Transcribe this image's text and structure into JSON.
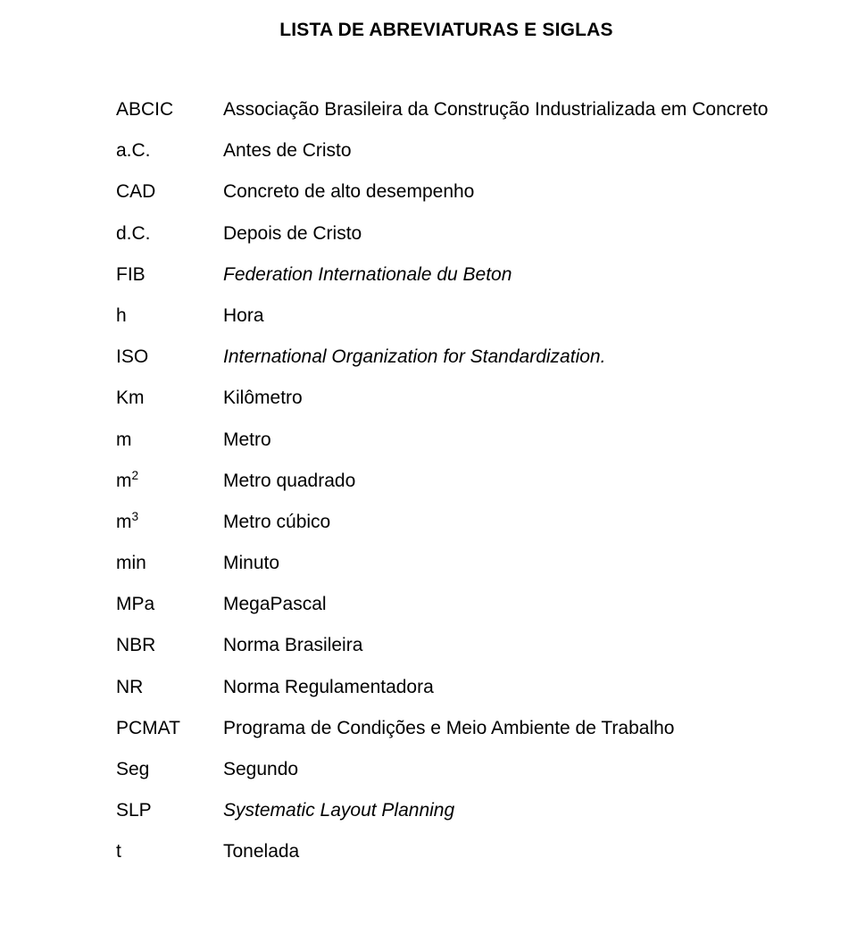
{
  "title": "LISTA DE ABREVIATURAS E SIGLAS",
  "entries": [
    {
      "abbr": "ABCIC",
      "desc": "Associação Brasileira da Construção Industrializada em Concreto",
      "italic": false
    },
    {
      "abbr": "a.C.",
      "desc": "Antes de Cristo",
      "italic": false
    },
    {
      "abbr": "CAD",
      "desc": "Concreto de alto desempenho",
      "italic": false
    },
    {
      "abbr": "d.C.",
      "desc": "Depois de Cristo",
      "italic": false
    },
    {
      "abbr": "FIB",
      "desc": "Federation Internationale du Beton",
      "italic": true
    },
    {
      "abbr": "h",
      "desc": "Hora",
      "italic": false
    },
    {
      "abbr": "ISO",
      "desc": "International Organization for Standardization.",
      "italic": true
    },
    {
      "abbr": "Km",
      "desc": "Kilômetro",
      "italic": false
    },
    {
      "abbr": "m",
      "desc": "Metro",
      "italic": false
    },
    {
      "abbr_html": "m<sup>2</sup>",
      "desc": "Metro quadrado",
      "italic": false
    },
    {
      "abbr_html": "m<sup>3</sup>",
      "desc": "Metro cúbico",
      "italic": false
    },
    {
      "abbr": "min",
      "desc": "Minuto",
      "italic": false
    },
    {
      "abbr": "MPa",
      "desc": "MegaPascal",
      "italic": false
    },
    {
      "abbr": "NBR",
      "desc": "Norma Brasileira",
      "italic": false
    },
    {
      "abbr": "NR",
      "desc": "Norma Regulamentadora",
      "italic": false
    },
    {
      "abbr": "PCMAT",
      "desc": "Programa de Condições e Meio Ambiente de Trabalho",
      "italic": false
    },
    {
      "abbr": "Seg",
      "desc": "Segundo",
      "italic": false
    },
    {
      "abbr": "SLP",
      "desc": "Systematic Layout Planning",
      "italic": true
    },
    {
      "abbr": "t",
      "desc": "Tonelada",
      "italic": false
    }
  ],
  "colors": {
    "background": "#ffffff",
    "text": "#000000"
  },
  "typography": {
    "title_fontsize": 21,
    "body_fontsize": 21,
    "font_family": "Arial"
  }
}
